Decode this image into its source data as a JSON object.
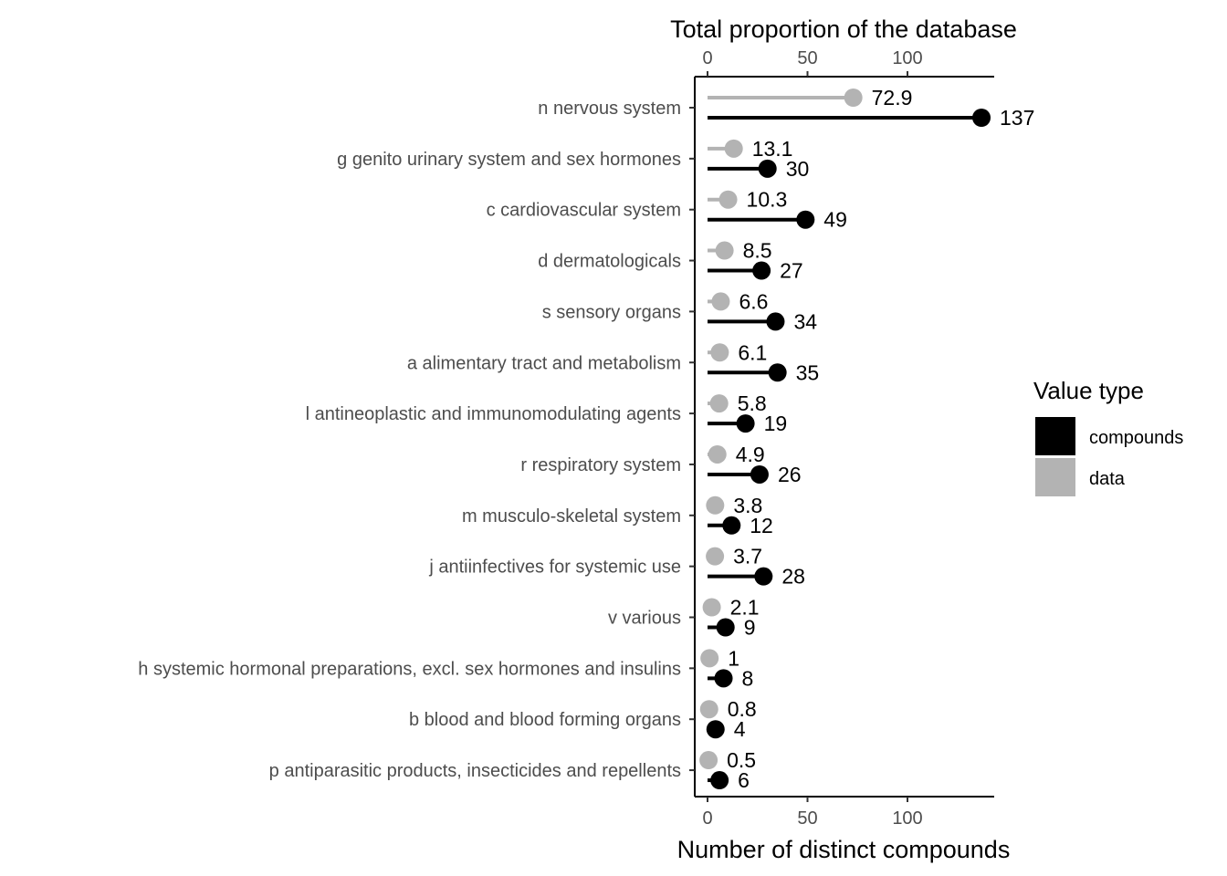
{
  "chart_data": {
    "type": "lollipop",
    "top_axis_title": "Total proportion of the database",
    "bottom_axis_title": "Number of distinct compounds",
    "xlim": [
      -6,
      143
    ],
    "x_ticks": [
      0,
      50,
      100
    ],
    "legend": {
      "title": "Value type",
      "position": "right",
      "entries": [
        {
          "key": "compounds",
          "label": "compounds",
          "color": "#000000"
        },
        {
          "key": "data",
          "label": "data",
          "color": "#b3b3b3"
        }
      ]
    },
    "categories": [
      "n nervous system",
      "g genito urinary system and sex hormones",
      "c cardiovascular system",
      "d dermatologicals",
      "s sensory organs",
      "a alimentary tract and metabolism",
      "l antineoplastic and immunomodulating agents",
      "r respiratory system",
      "m musculo-skeletal system",
      "j antiinfectives for systemic use",
      "v various",
      "h systemic hormonal preparations, excl. sex hormones and insulins",
      "b blood and blood forming organs",
      "p antiparasitic products, insecticides and repellents"
    ],
    "series": [
      {
        "name": "data",
        "color": "#b3b3b3",
        "values": [
          72.9,
          13.1,
          10.3,
          8.5,
          6.6,
          6.1,
          5.8,
          4.9,
          3.8,
          3.7,
          2.1,
          1,
          0.8,
          0.5
        ],
        "labels": [
          "72.9",
          "13.1",
          "10.3",
          "8.5",
          "6.6",
          "6.1",
          "5.8",
          "4.9",
          "3.8",
          "3.7",
          "2.1",
          "1",
          "0.8",
          "0.5"
        ]
      },
      {
        "name": "compounds",
        "color": "#000000",
        "values": [
          137,
          30,
          49,
          27,
          34,
          35,
          19,
          26,
          12,
          28,
          9,
          8,
          4,
          6
        ],
        "labels": [
          "137",
          "30",
          "49",
          "27",
          "34",
          "35",
          "19",
          "26",
          "12",
          "28",
          "9",
          "8",
          "4",
          "6"
        ]
      }
    ]
  }
}
